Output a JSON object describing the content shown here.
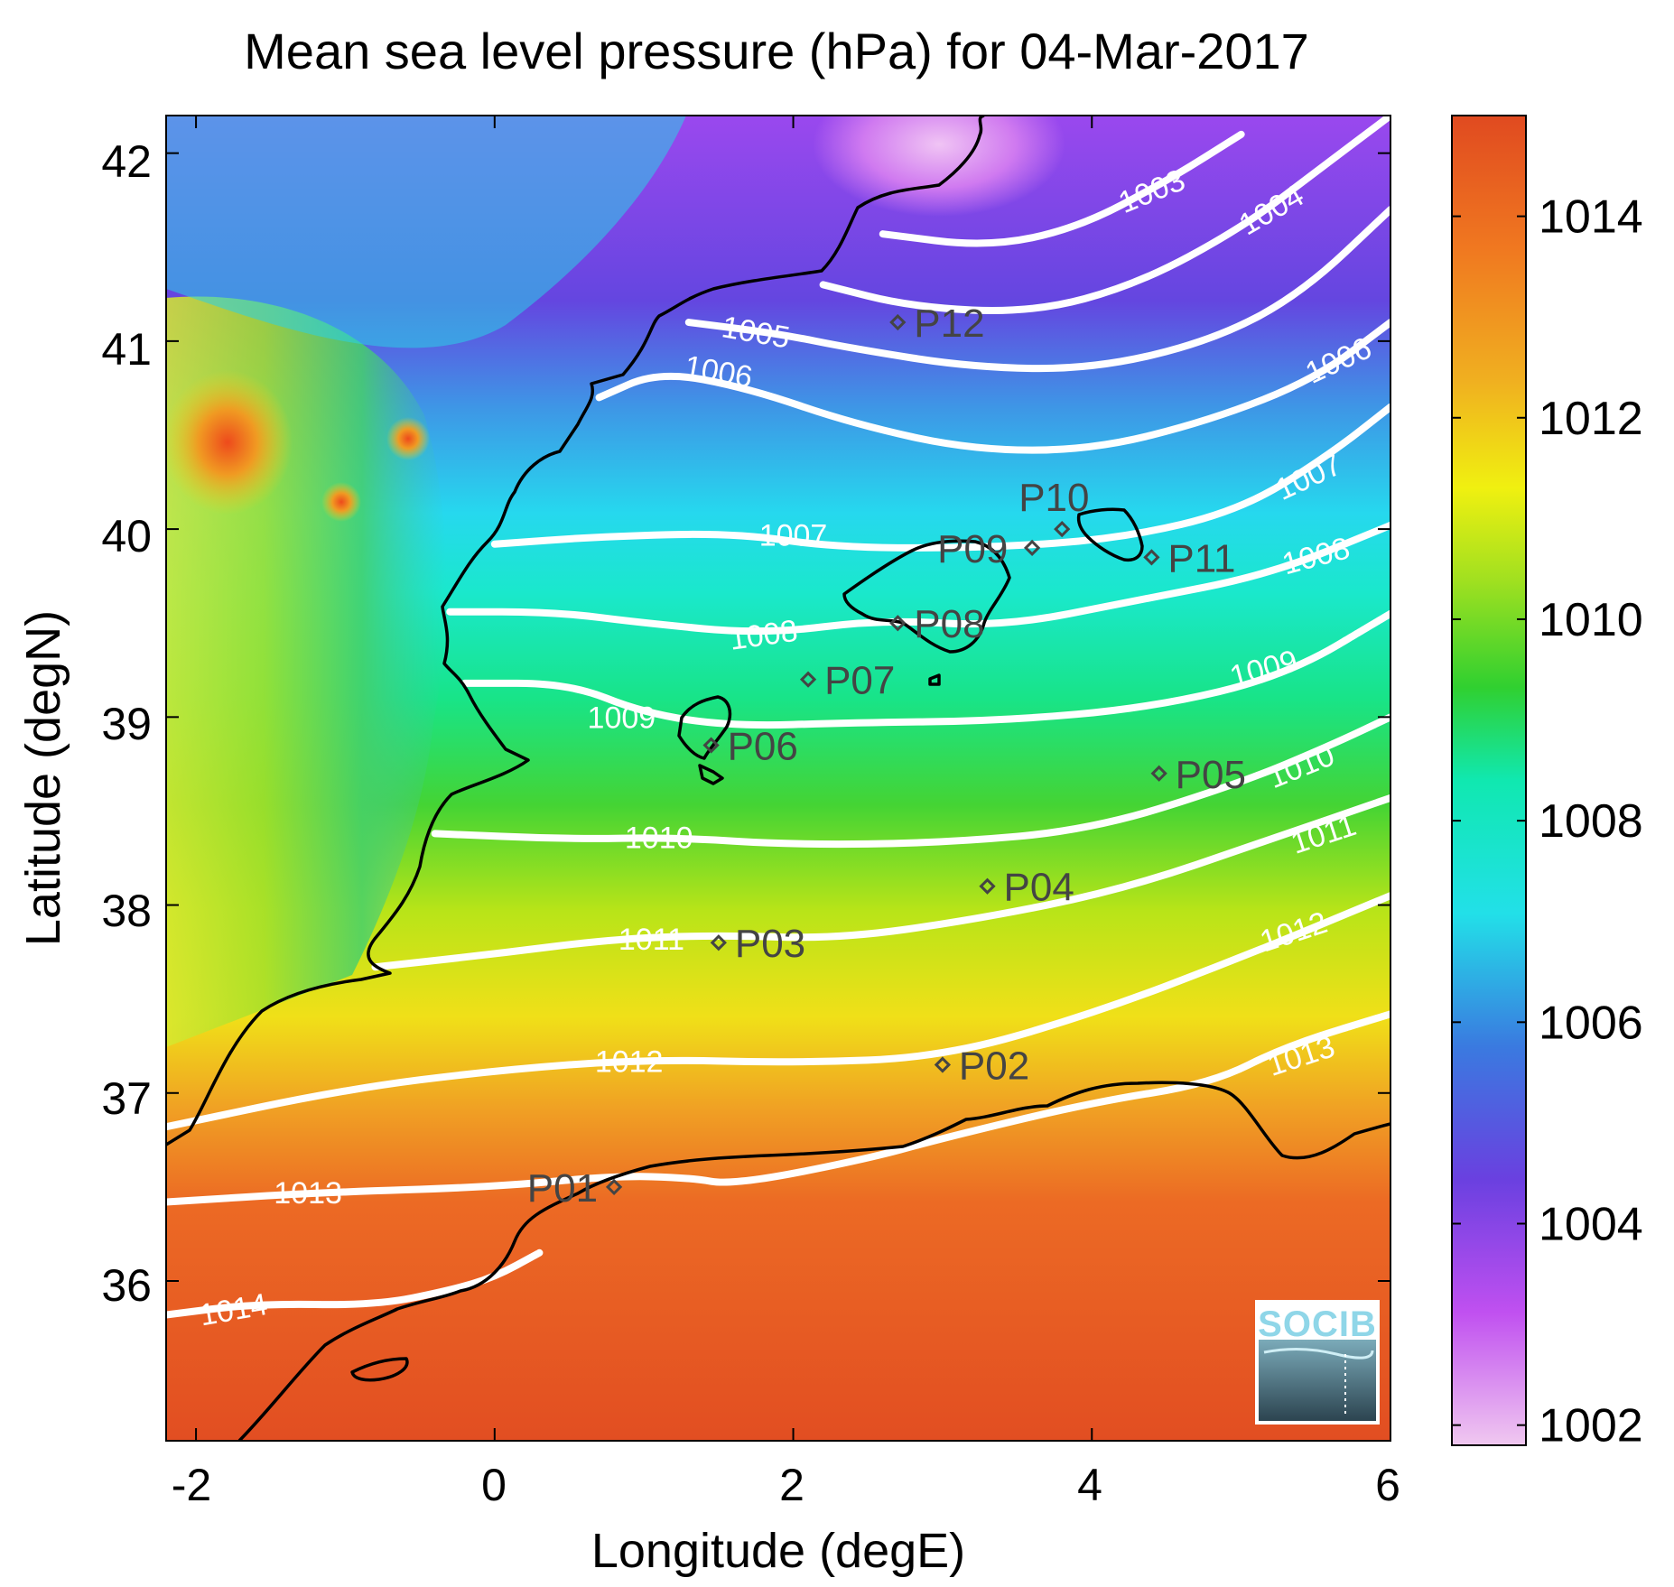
{
  "title": "Mean sea level pressure (hPa) for 04-Mar-2017",
  "x_axis": {
    "label": "Longitude (degE)",
    "ticks": [
      "-2",
      "0",
      "2",
      "4",
      "6"
    ]
  },
  "y_axis": {
    "label": "Latitude (degN)",
    "ticks": [
      "36",
      "37",
      "38",
      "39",
      "40",
      "41",
      "42"
    ]
  },
  "colorbar": {
    "range": [
      1001.8,
      1015.0
    ],
    "ticks": [
      "1002",
      "1004",
      "1006",
      "1008",
      "1010",
      "1012",
      "1014"
    ],
    "colors": [
      "#f0c8f0",
      "#c050f0",
      "#6a40e0",
      "#3a7ae0",
      "#22e0e8",
      "#10e8b0",
      "#30d030",
      "#a0e020",
      "#f0f010",
      "#f0b020",
      "#f07820",
      "#e04a20"
    ]
  },
  "chart_data": {
    "type": "heatmap",
    "variable": "Mean sea level pressure",
    "units": "hPa",
    "date": "04-Mar-2017",
    "xlim": [
      -2.2,
      6.0
    ],
    "ylim": [
      35.15,
      42.2
    ],
    "contour_levels": [
      {
        "value": 1003,
        "label": "1003",
        "points": [
          [
            2.6,
            41.57
          ],
          [
            3.3,
            41.5
          ],
          [
            3.9,
            41.6
          ],
          [
            4.5,
            41.85
          ],
          [
            5.0,
            42.1
          ]
        ],
        "label_at": [
          4.4,
          41.8
        ],
        "label_angle": -22
      },
      {
        "value": 1004,
        "label": "1004",
        "points": [
          [
            2.2,
            41.3
          ],
          [
            2.8,
            41.18
          ],
          [
            3.6,
            41.15
          ],
          [
            4.3,
            41.3
          ],
          [
            5.0,
            41.6
          ],
          [
            5.5,
            41.9
          ],
          [
            6.0,
            42.2
          ]
        ],
        "label_at": [
          5.2,
          41.7
        ],
        "label_angle": -30
      },
      {
        "value": 1005,
        "label": "1005",
        "points": [
          [
            1.3,
            41.1
          ],
          [
            1.9,
            41.04
          ],
          [
            2.4,
            40.96
          ],
          [
            3.2,
            40.86
          ],
          [
            4.0,
            40.85
          ],
          [
            4.8,
            41.0
          ],
          [
            5.4,
            41.25
          ],
          [
            6.0,
            41.7
          ]
        ],
        "label_at": [
          1.75,
          41.05
        ],
        "label_angle": 10
      },
      {
        "value": 1006,
        "label": "1006",
        "points": [
          [
            0.7,
            40.7
          ],
          [
            1.1,
            40.84
          ],
          [
            1.7,
            40.75
          ],
          [
            2.4,
            40.56
          ],
          [
            3.2,
            40.42
          ],
          [
            4.0,
            40.42
          ],
          [
            4.8,
            40.58
          ],
          [
            5.5,
            40.8
          ],
          [
            6.0,
            41.1
          ]
        ],
        "label_at": [
          5.65,
          40.9
        ],
        "label_angle": -25
      },
      {
        "value": 1006,
        "label": "1006",
        "points": [],
        "label_at": [
          1.5,
          40.84
        ],
        "label_angle": 10
      },
      {
        "value": 1007,
        "label": "1007",
        "points": [
          [
            0.0,
            39.92
          ],
          [
            0.7,
            39.96
          ],
          [
            1.6,
            39.98
          ],
          [
            2.3,
            39.9
          ],
          [
            3.3,
            39.9
          ],
          [
            4.2,
            39.95
          ],
          [
            5.0,
            40.1
          ],
          [
            5.6,
            40.4
          ],
          [
            6.0,
            40.65
          ]
        ],
        "label_at": [
          5.45,
          40.28
        ],
        "label_angle": -25
      },
      {
        "value": 1007,
        "label": "1007",
        "points": [],
        "label_at": [
          2.0,
          39.97
        ],
        "label_angle": 0
      },
      {
        "value": 1008,
        "label": "1008",
        "points": [
          [
            -0.3,
            39.56
          ],
          [
            0.4,
            39.56
          ],
          [
            1.0,
            39.5
          ],
          [
            1.8,
            39.44
          ],
          [
            2.6,
            39.52
          ],
          [
            3.4,
            39.48
          ],
          [
            4.3,
            39.62
          ],
          [
            5.2,
            39.76
          ],
          [
            6.0,
            40.02
          ]
        ],
        "label_at": [
          5.5,
          39.86
        ],
        "label_angle": -15
      },
      {
        "value": 1008,
        "label": "1008",
        "points": [],
        "label_at": [
          1.8,
          39.44
        ],
        "label_angle": -8
      },
      {
        "value": 1009,
        "label": "1009",
        "points": [
          [
            -0.2,
            39.18
          ],
          [
            0.5,
            39.18
          ],
          [
            1.0,
            39.02
          ],
          [
            1.6,
            38.95
          ],
          [
            2.4,
            38.97
          ],
          [
            3.4,
            38.98
          ],
          [
            4.4,
            39.05
          ],
          [
            5.3,
            39.22
          ],
          [
            6.0,
            39.55
          ]
        ],
        "label_at": [
          5.15,
          39.26
        ],
        "label_angle": -15
      },
      {
        "value": 1009,
        "label": "1009",
        "points": [],
        "label_at": [
          0.85,
          39.0
        ],
        "label_angle": 0
      },
      {
        "value": 1010,
        "label": "1010",
        "points": [
          [
            -0.4,
            38.38
          ],
          [
            0.5,
            38.35
          ],
          [
            1.2,
            38.36
          ],
          [
            2.0,
            38.32
          ],
          [
            3.0,
            38.33
          ],
          [
            4.0,
            38.4
          ],
          [
            5.0,
            38.65
          ],
          [
            5.6,
            38.85
          ],
          [
            6.0,
            39.0
          ]
        ],
        "label_at": [
          5.4,
          38.74
        ],
        "label_angle": -22
      },
      {
        "value": 1010,
        "label": "1010",
        "points": [],
        "label_at": [
          1.1,
          38.36
        ],
        "label_angle": 0
      },
      {
        "value": 1011,
        "label": "1011",
        "points": [
          [
            -0.8,
            37.67
          ],
          [
            0.0,
            37.74
          ],
          [
            0.8,
            37.82
          ],
          [
            1.5,
            37.84
          ],
          [
            2.3,
            37.82
          ],
          [
            3.2,
            37.92
          ],
          [
            4.2,
            38.08
          ],
          [
            5.2,
            38.35
          ],
          [
            6.0,
            38.57
          ]
        ],
        "label_at": [
          5.55,
          38.38
        ],
        "label_angle": -18
      },
      {
        "value": 1011,
        "label": "1011",
        "points": [],
        "label_at": [
          1.05,
          37.82
        ],
        "label_angle": 0
      },
      {
        "value": 1012,
        "label": "1012",
        "points": [
          [
            -2.2,
            36.82
          ],
          [
            -1.0,
            37.02
          ],
          [
            0.0,
            37.12
          ],
          [
            1.0,
            37.18
          ],
          [
            2.0,
            37.16
          ],
          [
            3.0,
            37.19
          ],
          [
            4.0,
            37.42
          ],
          [
            5.0,
            37.72
          ],
          [
            6.0,
            38.05
          ]
        ],
        "label_at": [
          5.35,
          37.86
        ],
        "label_angle": -18
      },
      {
        "value": 1012,
        "label": "1012",
        "points": [],
        "label_at": [
          0.9,
          37.17
        ],
        "label_angle": 0
      },
      {
        "value": 1013,
        "label": "1013",
        "points": [
          [
            -2.2,
            36.42
          ],
          [
            -1.2,
            36.47
          ],
          [
            0.0,
            36.5
          ],
          [
            0.8,
            36.56
          ],
          [
            1.3,
            36.55
          ],
          [
            1.6,
            36.51
          ],
          [
            2.5,
            36.65
          ],
          [
            3.0,
            36.76
          ],
          [
            4.0,
            36.95
          ],
          [
            4.8,
            37.05
          ],
          [
            5.3,
            37.25
          ],
          [
            6.0,
            37.42
          ]
        ],
        "label_at": [
          5.4,
          37.2
        ],
        "label_angle": -18
      },
      {
        "value": 1013,
        "label": "1013",
        "points": [],
        "label_at": [
          -1.25,
          36.47
        ],
        "label_angle": 0
      },
      {
        "value": 1014,
        "label": "1014",
        "points": [
          [
            -2.2,
            35.82
          ],
          [
            -1.6,
            35.88
          ],
          [
            -0.8,
            35.87
          ],
          [
            -0.3,
            35.95
          ],
          [
            0.0,
            36.02
          ],
          [
            0.3,
            36.15
          ]
        ],
        "label_at": [
          -1.75,
          35.85
        ],
        "label_angle": -10
      }
    ],
    "stations": [
      {
        "id": "P01",
        "lon": 0.8,
        "lat": 36.5
      },
      {
        "id": "P02",
        "lon": 3.0,
        "lat": 37.15
      },
      {
        "id": "P03",
        "lon": 1.5,
        "lat": 37.8
      },
      {
        "id": "P04",
        "lon": 3.3,
        "lat": 38.1
      },
      {
        "id": "P05",
        "lon": 4.45,
        "lat": 38.7
      },
      {
        "id": "P06",
        "lon": 1.45,
        "lat": 38.85
      },
      {
        "id": "P07",
        "lon": 2.1,
        "lat": 39.2
      },
      {
        "id": "P08",
        "lon": 2.7,
        "lat": 39.5
      },
      {
        "id": "P09",
        "lon": 3.6,
        "lat": 39.9
      },
      {
        "id": "P10",
        "lon": 3.8,
        "lat": 40.0
      },
      {
        "id": "P11",
        "lon": 4.4,
        "lat": 39.85
      },
      {
        "id": "P12",
        "lon": 2.7,
        "lat": 41.1
      }
    ]
  },
  "logo": {
    "text": "SOCIB"
  }
}
